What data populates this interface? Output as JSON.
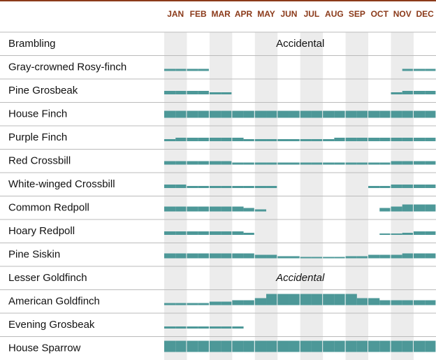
{
  "header": {
    "months": [
      "JAN",
      "FEB",
      "MAR",
      "APR",
      "MAY",
      "JUN",
      "JUL",
      "AUG",
      "SEP",
      "OCT",
      "NOV",
      "DEC"
    ]
  },
  "rows": [
    {
      "label": "Brambling",
      "note": "Accidental"
    },
    {
      "label": "Gray-crowned Rosy-finch",
      "levels": [
        2,
        2,
        2,
        2,
        0,
        0,
        0,
        0,
        0,
        0,
        0,
        0,
        0,
        0,
        0,
        0,
        0,
        0,
        0,
        0,
        0,
        2,
        2,
        2
      ]
    },
    {
      "label": "Pine Grosbeak",
      "levels": [
        3,
        3,
        3,
        3,
        2,
        2,
        0,
        0,
        0,
        0,
        0,
        0,
        0,
        0,
        0,
        0,
        0,
        0,
        0,
        0,
        2,
        3,
        3,
        3
      ]
    },
    {
      "label": "House Finch",
      "levels": [
        5,
        5,
        5,
        5,
        5,
        5,
        5,
        5,
        5,
        5,
        5,
        5,
        5,
        5,
        5,
        5,
        5,
        5,
        5,
        5,
        5,
        5,
        5,
        5
      ]
    },
    {
      "label": "Purple Finch",
      "levels": [
        2,
        3,
        3,
        3,
        3,
        3,
        3,
        2,
        2,
        2,
        2,
        2,
        2,
        2,
        2,
        3,
        3,
        3,
        3,
        3,
        3,
        3,
        3,
        3
      ]
    },
    {
      "label": "Red Crossbill",
      "levels": [
        3,
        3,
        3,
        3,
        3,
        3,
        2,
        2,
        2,
        2,
        2,
        2,
        2,
        2,
        2,
        2,
        2,
        2,
        2,
        2,
        3,
        3,
        3,
        3
      ]
    },
    {
      "label": "White-winged Crossbill",
      "levels": [
        3,
        3,
        2,
        2,
        2,
        2,
        2,
        2,
        2,
        2,
        0,
        0,
        0,
        0,
        0,
        0,
        0,
        0,
        2,
        2,
        3,
        3,
        3,
        3
      ]
    },
    {
      "label": "Common Redpoll",
      "levels": [
        4,
        4,
        4,
        4,
        4,
        4,
        4,
        3,
        2,
        0,
        0,
        0,
        0,
        0,
        0,
        0,
        0,
        0,
        0,
        3,
        4,
        5,
        5,
        5
      ]
    },
    {
      "label": "Hoary Redpoll",
      "levels": [
        3,
        3,
        3,
        3,
        3,
        3,
        3,
        2,
        0,
        0,
        0,
        0,
        0,
        0,
        0,
        0,
        0,
        0,
        0,
        1,
        1,
        2,
        3,
        3
      ]
    },
    {
      "label": "Pine Siskin",
      "levels": [
        4,
        4,
        4,
        4,
        4,
        4,
        4,
        4,
        3,
        3,
        2,
        2,
        1,
        1,
        1,
        1,
        2,
        2,
        3,
        3,
        3,
        4,
        4,
        4
      ]
    },
    {
      "label": "Lesser Goldfinch",
      "note": "Accidental",
      "italic": true
    },
    {
      "label": "American Goldfinch",
      "levels": [
        2,
        2,
        2,
        2,
        3,
        3,
        4,
        4,
        5,
        6,
        6,
        6,
        6,
        6,
        6,
        6,
        6,
        5,
        5,
        4,
        4,
        4,
        4,
        4
      ]
    },
    {
      "label": "Evening Grosbeak",
      "levels": [
        2,
        2,
        2,
        2,
        2,
        2,
        2,
        0,
        0,
        0,
        0,
        0,
        0,
        0,
        0,
        0,
        0,
        0,
        0,
        0,
        0,
        0,
        0,
        0
      ]
    },
    {
      "label": "House Sparrow",
      "levels": [
        6,
        6,
        6,
        6,
        6,
        6,
        6,
        6,
        6,
        6,
        6,
        6,
        6,
        6,
        6,
        6,
        6,
        6,
        6,
        6,
        6,
        6,
        6,
        6
      ]
    }
  ]
}
